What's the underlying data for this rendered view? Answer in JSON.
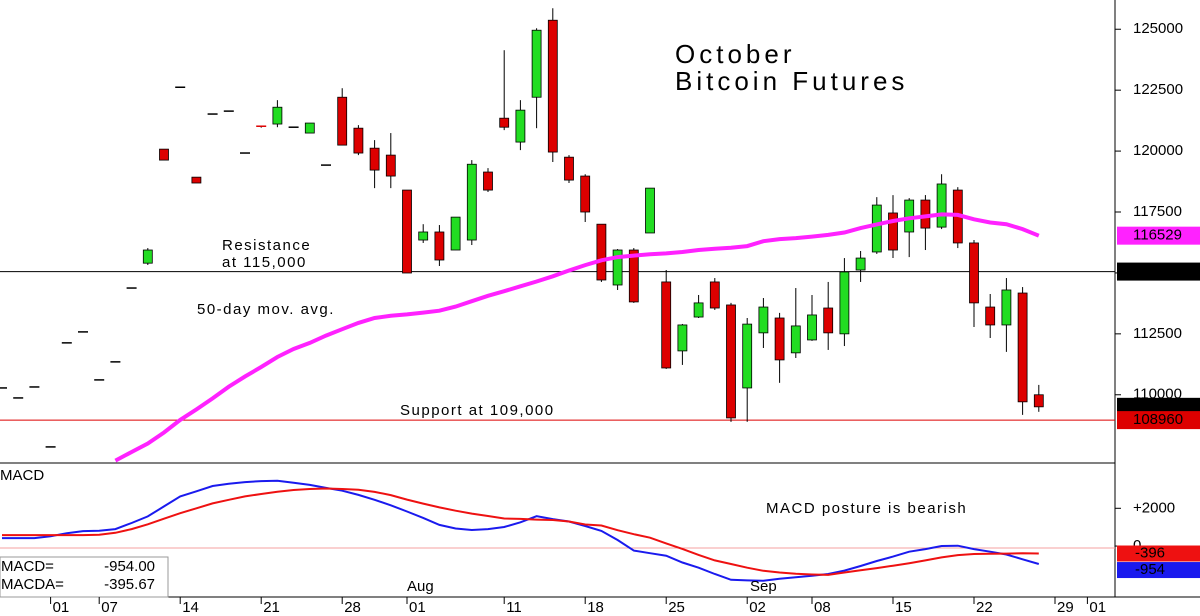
{
  "chart_data": [
    {
      "type": "candlestick",
      "title_lines": [
        "October",
        "Bitcoin Futures"
      ],
      "ylim": [
        107200,
        126200
      ],
      "yticks": [
        110000,
        112500,
        115000,
        117500,
        120000,
        122500,
        125000
      ],
      "up_color": "#22dd22",
      "down_color": "#dd0000",
      "open": [
        110280,
        109870,
        110320,
        107860,
        112130,
        112580,
        110610,
        111350,
        114380,
        115400,
        120080,
        122620,
        118930,
        121520,
        121640,
        119920,
        121020,
        121110,
        120980,
        120740,
        119425,
        122210,
        120940,
        120120,
        119835,
        118400,
        116350,
        116680,
        115940,
        116350,
        119140,
        121350,
        120370,
        122210,
        125370,
        119750,
        118975,
        117000,
        114505,
        115940,
        116640,
        114630,
        111800,
        113190,
        114630,
        113685,
        110280,
        112540,
        113150,
        111720,
        112250,
        113560,
        112500,
        115120,
        115860,
        117460,
        116680,
        117990,
        116880,
        118400,
        116230,
        113600,
        112865,
        114175,
        110000,
        null,
        null,
        null
      ],
      "high": [
        110280,
        109870,
        110320,
        107860,
        112130,
        112580,
        110610,
        111350,
        114380,
        116020,
        120080,
        122620,
        118930,
        121520,
        121640,
        119920,
        121020,
        122090,
        120980,
        121150,
        119425,
        122580,
        121065,
        120450,
        120740,
        118400,
        117000,
        116965,
        117290,
        119630,
        119300,
        124140,
        122090,
        125040,
        125860,
        119835,
        119050,
        117000,
        115980,
        116020,
        118480,
        115120,
        112906,
        114095,
        114790,
        113770,
        113150,
        113970,
        113360,
        114380,
        114095,
        114630,
        115610,
        115900,
        118110,
        118195,
        118070,
        118195,
        119050,
        118520,
        116350,
        114135,
        114790,
        114420,
        110405,
        null,
        null,
        null
      ],
      "low": [
        110280,
        109870,
        110320,
        107860,
        112130,
        112580,
        110610,
        111350,
        114380,
        115325,
        119630,
        122620,
        118690,
        121520,
        121640,
        119920,
        120960,
        120980,
        120980,
        120740,
        119425,
        120245,
        119835,
        118480,
        118480,
        114997,
        116230,
        115285,
        115940,
        116145,
        118320,
        120860,
        120040,
        120940,
        119550,
        118690,
        117090,
        114630,
        114300,
        113770,
        116640,
        111060,
        111225,
        113150,
        113480,
        108890,
        108890,
        111920,
        110490,
        111510,
        112210,
        111840,
        112000,
        114630,
        115780,
        115610,
        115650,
        115940,
        116800,
        116020,
        112780,
        112330,
        111760,
        109175,
        109300,
        null,
        null,
        null
      ],
      "close": [
        110280,
        109870,
        110320,
        107860,
        112130,
        112580,
        110610,
        111350,
        114380,
        115940,
        119630,
        122620,
        118690,
        121520,
        121640,
        119920,
        120960,
        121800,
        120980,
        121150,
        119425,
        120245,
        119920,
        119220,
        118975,
        114997,
        116680,
        115530,
        117290,
        119460,
        118400,
        120980,
        121680,
        124960,
        119960,
        118810,
        117500,
        114710,
        115940,
        113810,
        118480,
        111100,
        112865,
        113770,
        113560,
        109050,
        112900,
        113600,
        111430,
        112825,
        113275,
        112540,
        115040,
        115610,
        117785,
        115940,
        117990,
        116840,
        118650,
        116230,
        113770,
        112865,
        114300,
        109710,
        109505,
        null,
        null,
        null
      ],
      "series": [
        {
          "name": "50-day mov. avg.",
          "color": "#ff22ff",
          "values": [
            null,
            null,
            null,
            null,
            null,
            null,
            null,
            107300,
            107650,
            108000,
            108450,
            108970,
            109400,
            109850,
            110330,
            110750,
            111140,
            111550,
            111880,
            112130,
            112430,
            112690,
            112950,
            113150,
            113240,
            113300,
            113370,
            113450,
            113620,
            113840,
            114060,
            114250,
            114450,
            114650,
            114860,
            115100,
            115320,
            115520,
            115650,
            115710,
            115770,
            115800,
            115860,
            115940,
            115990,
            116030,
            116100,
            116300,
            116390,
            116430,
            116490,
            116560,
            116660,
            116840,
            116990,
            117130,
            117240,
            117320,
            117400,
            117380,
            117200,
            117070,
            117000,
            116800,
            116529,
            null,
            null,
            null
          ]
        }
      ],
      "annotations": [
        "Resistance",
        "at 115,000",
        "Support at 109,000"
      ],
      "tags": [
        {
          "value": 116529,
          "color": "#ff22ff",
          "line": false
        },
        {
          "value": 115055,
          "color": "#000000",
          "line": true
        },
        {
          "value": 109505,
          "color": "#000000",
          "line": false
        },
        {
          "value": 108960,
          "color": "#dd0000",
          "line": true
        }
      ]
    },
    {
      "type": "line",
      "title": "MACD",
      "categories": [
        null,
        null,
        null,
        "01",
        null,
        null,
        "07",
        null,
        null,
        null,
        null,
        "14",
        null,
        null,
        null,
        null,
        "21",
        null,
        null,
        null,
        null,
        "28",
        null,
        null,
        null,
        "01",
        null,
        null,
        null,
        null,
        null,
        "11",
        null,
        null,
        null,
        null,
        "18",
        null,
        null,
        null,
        null,
        "25",
        null,
        null,
        null,
        null,
        "02",
        null,
        null,
        null,
        "08",
        null,
        null,
        null,
        null,
        "15",
        null,
        null,
        null,
        null,
        "22",
        null,
        null,
        null,
        null,
        "29",
        null,
        "01"
      ],
      "months": [
        "Aug",
        "Sep"
      ],
      "ylim": [
        -2700,
        4400
      ],
      "yticks": [
        0,
        {
          "value": 2000,
          "label": "+2000"
        }
      ],
      "series": [
        {
          "name": "MACD=",
          "color": "#1a1aee",
          "value_label": "-954.00",
          "values": [
            420,
            420,
            420,
            520,
            680,
            790,
            810,
            900,
            1220,
            1570,
            2100,
            2630,
            2900,
            3180,
            3300,
            3390,
            3440,
            3460,
            3350,
            3240,
            3080,
            2930,
            2710,
            2450,
            2160,
            1830,
            1490,
            1120,
            930,
            850,
            900,
            1010,
            1260,
            1580,
            1430,
            1300,
            1060,
            800,
            320,
            -240,
            -380,
            -510,
            -870,
            -1150,
            -1480,
            -1790,
            -1820,
            -1840,
            -1730,
            -1650,
            -1570,
            -1480,
            -1300,
            -1060,
            -790,
            -560,
            -300,
            -160,
            0,
            20,
            -160,
            -300,
            -450,
            -700,
            -954,
            null,
            null,
            null
          ]
        },
        {
          "name": "MACDA=",
          "color": "#ee1111",
          "value_label": "-395.67",
          "values": [
            580,
            580,
            580,
            580,
            580,
            580,
            600,
            700,
            900,
            1150,
            1450,
            1740,
            2000,
            2260,
            2450,
            2630,
            2760,
            2880,
            2970,
            3020,
            3050,
            3020,
            2980,
            2870,
            2700,
            2460,
            2250,
            2050,
            1870,
            1720,
            1590,
            1460,
            1440,
            1400,
            1380,
            1300,
            1140,
            1090,
            840,
            630,
            440,
            140,
            -150,
            -470,
            -760,
            -950,
            -1150,
            -1310,
            -1400,
            -1470,
            -1510,
            -1530,
            -1400,
            -1280,
            -1170,
            -1040,
            -910,
            -760,
            -600,
            -480,
            -420,
            -410,
            -400,
            -380,
            -395.67,
            null,
            null,
            null
          ]
        }
      ],
      "annotations": [
        "MACD posture is bearish"
      ],
      "tags": [
        {
          "value": -395.67,
          "label": "-396",
          "color": "#ee1111"
        },
        {
          "value": -954,
          "label": "-954",
          "color": "#1a1aee"
        }
      ]
    }
  ]
}
